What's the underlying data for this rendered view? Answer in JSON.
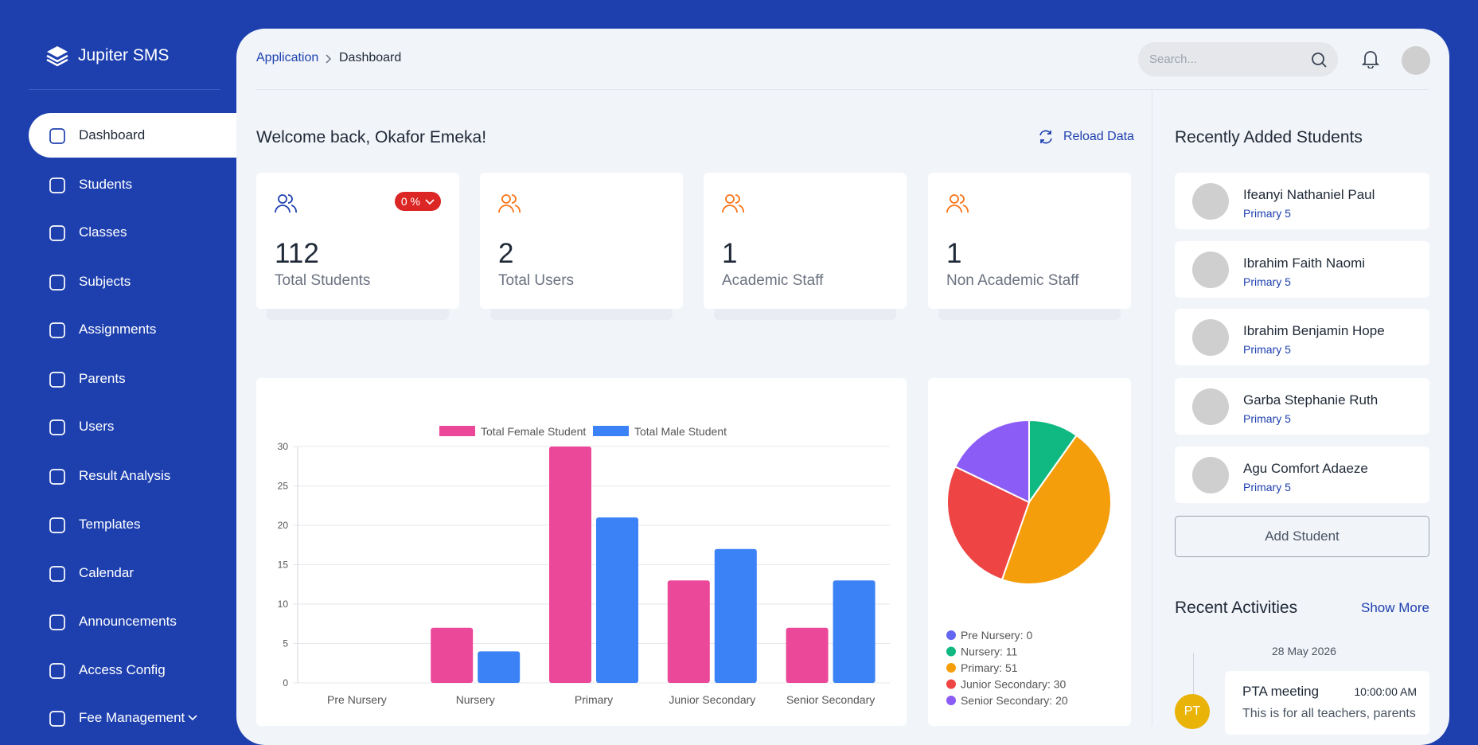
{
  "sidebar": {
    "brand": "Jupiter SMS",
    "items": [
      "Dashboard",
      "Students",
      "Classes",
      "Subjects",
      "Assignments",
      "Parents",
      "Users",
      "Result Analysis",
      "Templates",
      "Calendar",
      "Announcements",
      "Access Config",
      "Fee Management"
    ]
  },
  "header": {
    "breadcrumb": [
      "Application",
      "Dashboard"
    ],
    "search_placeholder": "Search..."
  },
  "welcome": "Welcome back, Okafor Emeka!",
  "reload": "Reload Data",
  "stats": [
    {
      "value": 112,
      "label": "Total Students",
      "badge": "0 %"
    },
    {
      "value": 2,
      "label": "Total Users"
    },
    {
      "value": 1,
      "label": "Academic Staff"
    },
    {
      "value": 1,
      "label": "Non Academic Staff"
    }
  ],
  "chart_data": [
    {
      "type": "bar",
      "categories": [
        "Pre Nursery",
        "Nursery",
        "Primary",
        "Junior Secondary",
        "Senior Secondary"
      ],
      "series": [
        {
          "name": "Total Female Student",
          "color": "#ec4899",
          "values": [
            0,
            7,
            30,
            13,
            7
          ]
        },
        {
          "name": "Total Male Student",
          "color": "#3b82f6",
          "values": [
            0,
            4,
            21,
            17,
            13
          ]
        }
      ],
      "ylim": [
        0,
        30
      ],
      "yticks": [
        0,
        5,
        10,
        15,
        20,
        25,
        30
      ],
      "grid": true,
      "legend": "top"
    },
    {
      "type": "pie",
      "categories": [
        "Pre Nursery",
        "Nursery",
        "Primary",
        "Junior Secondary",
        "Senior Secondary"
      ],
      "values": [
        0,
        11,
        51,
        30,
        20
      ],
      "colors": [
        "#6366f1",
        "#10b981",
        "#f59e0b",
        "#ef4444",
        "#8b5cf6"
      ],
      "legend": "bottom"
    }
  ],
  "recent_students": {
    "title": "Recently Added Students",
    "students": [
      {
        "name": "Ifeanyi Nathaniel Paul",
        "class": "Primary 5"
      },
      {
        "name": "Ibrahim Faith Naomi",
        "class": "Primary 5"
      },
      {
        "name": "Ibrahim Benjamin Hope",
        "class": "Primary 5"
      },
      {
        "name": "Garba Stephanie Ruth",
        "class": "Primary 5"
      },
      {
        "name": "Agu Comfort Adaeze",
        "class": "Primary 5"
      }
    ],
    "add_button": "Add Student"
  },
  "recent_activities": {
    "title": "Recent Activities",
    "show_more": "Show More",
    "items": [
      {
        "date": "28 May 2026",
        "initials": "PT",
        "title": "PTA meeting",
        "time": "10:00:00 AM",
        "text": "This is for all teachers, parents"
      }
    ]
  }
}
